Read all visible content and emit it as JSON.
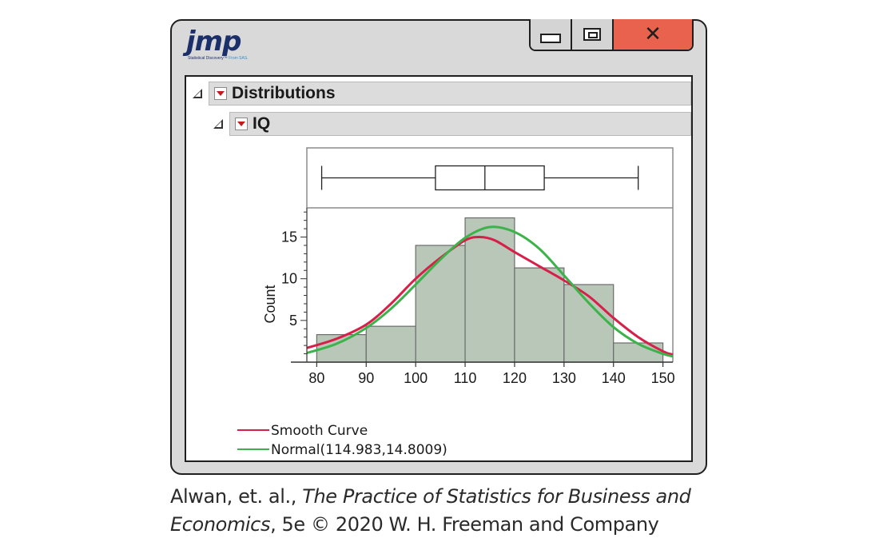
{
  "app": {
    "logo_text": "jmp",
    "logo_subtitle_a": "Statistical Discovery™",
    "logo_subtitle_b": "From SAS."
  },
  "window_controls": [
    "minimize",
    "maximize",
    "close"
  ],
  "outline": {
    "distributions_label": "Distributions",
    "variable_label": "IQ"
  },
  "chart_data": {
    "type": "histogram",
    "variable": "IQ",
    "ylabel": "Count",
    "xlim": [
      78,
      152
    ],
    "ylim": [
      0,
      18.5
    ],
    "xticks": [
      80,
      90,
      100,
      110,
      120,
      130,
      140,
      150
    ],
    "yticks": [
      5,
      10,
      15
    ],
    "bins": [
      {
        "x0": 80,
        "x1": 90,
        "count": 3.3
      },
      {
        "x0": 90,
        "x1": 100,
        "count": 4.3
      },
      {
        "x0": 100,
        "x1": 110,
        "count": 14.0
      },
      {
        "x0": 110,
        "x1": 120,
        "count": 17.3
      },
      {
        "x0": 120,
        "x1": 130,
        "count": 11.3
      },
      {
        "x0": 130,
        "x1": 140,
        "count": 9.3
      },
      {
        "x0": 140,
        "x1": 150,
        "count": 2.3
      }
    ],
    "boxplot": {
      "min": 81,
      "q1": 104,
      "median": 114,
      "q3": 126,
      "max": 145
    },
    "series": [
      {
        "name": "Smooth Curve",
        "color": "#d6204a",
        "x": [
          78,
          84,
          90,
          95,
          100,
          105,
          110,
          113,
          116,
          120,
          125,
          130,
          135,
          140,
          145,
          150,
          152
        ],
        "y": [
          1.7,
          2.8,
          4.5,
          7.0,
          10.0,
          12.5,
          14.6,
          15.0,
          14.6,
          13.2,
          11.5,
          9.8,
          7.9,
          5.3,
          3.0,
          1.3,
          0.9
        ]
      },
      {
        "name": "Normal(114.983,14.8009)",
        "color": "#3cb34a",
        "x": [
          78,
          84,
          90,
          95,
          100,
          105,
          110,
          115,
          120,
          125,
          130,
          135,
          140,
          145,
          150,
          152
        ],
        "y": [
          1.1,
          2.2,
          4.1,
          6.4,
          9.3,
          12.3,
          14.9,
          16.2,
          15.6,
          13.6,
          10.4,
          7.1,
          4.2,
          2.2,
          1.0,
          0.7
        ]
      }
    ],
    "bar_fill": "#b9c7b9",
    "bar_stroke": "#6b6b6b"
  },
  "caption": {
    "line1_a": "Alwan, et. al., ",
    "line1_b": "The Practice of Statistics for Business and",
    "line2_a": "Economics",
    "line2_b": ", 5e © 2020 W. H. Freeman and Company"
  }
}
